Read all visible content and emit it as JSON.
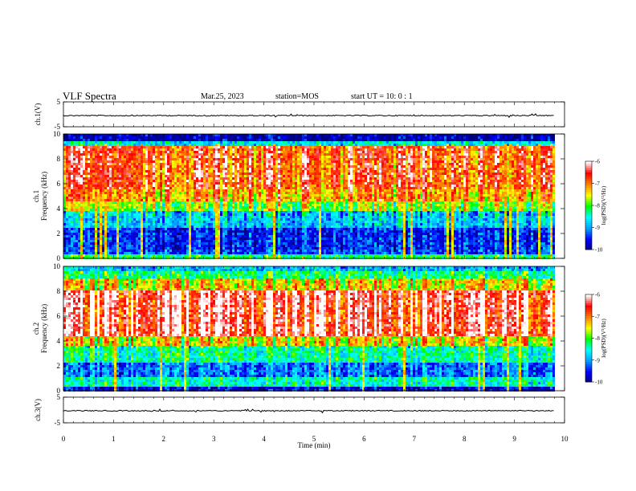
{
  "header": {
    "title": "VLF Spectra",
    "date": "Mar.25, 2023",
    "station": "station=MOS",
    "start_ut": "start  UT =   10: 0  : 1"
  },
  "chart_data": [
    {
      "type": "line",
      "panel": "ch1-waveform",
      "ylabel": "ch.1(V)",
      "ylim": [
        -5,
        5
      ],
      "yticks": [
        5,
        -5
      ],
      "series": [
        {
          "x": [
            0,
            9.8
          ],
          "values": [
            -0.5,
            -0.5
          ]
        }
      ]
    },
    {
      "type": "heatmap",
      "panel": "ch1-spectrogram",
      "ylabel_lines": [
        "ch.1",
        "Frequency (kHz)"
      ],
      "ylim": [
        0,
        10
      ],
      "yticks": [
        0,
        2,
        4,
        6,
        8,
        10
      ],
      "x_range": [
        0,
        9.8
      ],
      "band_profile_khz": [
        {
          "from": 0.0,
          "to": 0.4,
          "level": 0.45
        },
        {
          "from": 0.4,
          "to": 0.8,
          "level": 0.18
        },
        {
          "from": 0.8,
          "to": 2.5,
          "level": 0.14
        },
        {
          "from": 2.5,
          "to": 3.8,
          "level": 0.3
        },
        {
          "from": 3.8,
          "to": 4.5,
          "level": 0.55
        },
        {
          "from": 4.5,
          "to": 5.5,
          "level": 0.72
        },
        {
          "from": 5.5,
          "to": 9.0,
          "level": 0.82
        },
        {
          "from": 9.0,
          "to": 9.5,
          "level": 0.35
        },
        {
          "from": 9.5,
          "to": 10.0,
          "level": 0.05
        }
      ],
      "colorbar": {
        "label": "log(PSD)(V²/Hz)",
        "ticks": [
          -6,
          -7,
          -8,
          -9,
          -10
        ],
        "range": [
          -10,
          -6
        ]
      }
    },
    {
      "type": "heatmap",
      "panel": "ch2-spectrogram",
      "ylabel_lines": [
        "ch.2",
        "Frequency (kHz)"
      ],
      "ylim": [
        0,
        10
      ],
      "yticks": [
        0,
        2,
        4,
        6,
        8,
        10
      ],
      "x_range": [
        0,
        9.8
      ],
      "band_profile_khz": [
        {
          "from": 0.0,
          "to": 0.3,
          "level": 0.1
        },
        {
          "from": 0.3,
          "to": 1.0,
          "level": 0.4
        },
        {
          "from": 1.0,
          "to": 2.2,
          "level": 0.22
        },
        {
          "from": 2.2,
          "to": 3.6,
          "level": 0.42
        },
        {
          "from": 3.6,
          "to": 4.4,
          "level": 0.65
        },
        {
          "from": 4.4,
          "to": 8.0,
          "level": 0.92
        },
        {
          "from": 8.0,
          "to": 9.0,
          "level": 0.65
        },
        {
          "from": 9.0,
          "to": 9.7,
          "level": 0.45
        },
        {
          "from": 9.7,
          "to": 10.0,
          "level": 0.3
        }
      ],
      "colorbar": {
        "label": "log(PSD)(V²/Hz)",
        "ticks": [
          -6,
          -7,
          -8,
          -9,
          -10
        ],
        "range": [
          -10,
          -6
        ]
      }
    },
    {
      "type": "line",
      "panel": "ch3-waveform",
      "ylabel": "ch.3(V)",
      "ylim": [
        -5,
        5
      ],
      "yticks": [
        5,
        -5
      ],
      "series": [
        {
          "x": [
            0,
            9.8
          ],
          "values": [
            -0.3,
            -0.3
          ]
        }
      ]
    }
  ],
  "xaxis": {
    "label": "Time (min)",
    "ticks": [
      "0",
      "1",
      "2",
      "3",
      "4",
      "5",
      "6",
      "7",
      "8",
      "9",
      "10"
    ],
    "range": [
      0,
      10
    ]
  },
  "colors": {
    "cmap": [
      "#000080",
      "#0000ff",
      "#00a0ff",
      "#00ffff",
      "#00ff00",
      "#ffff00",
      "#ff8000",
      "#ff0000",
      "#ffffff"
    ]
  }
}
